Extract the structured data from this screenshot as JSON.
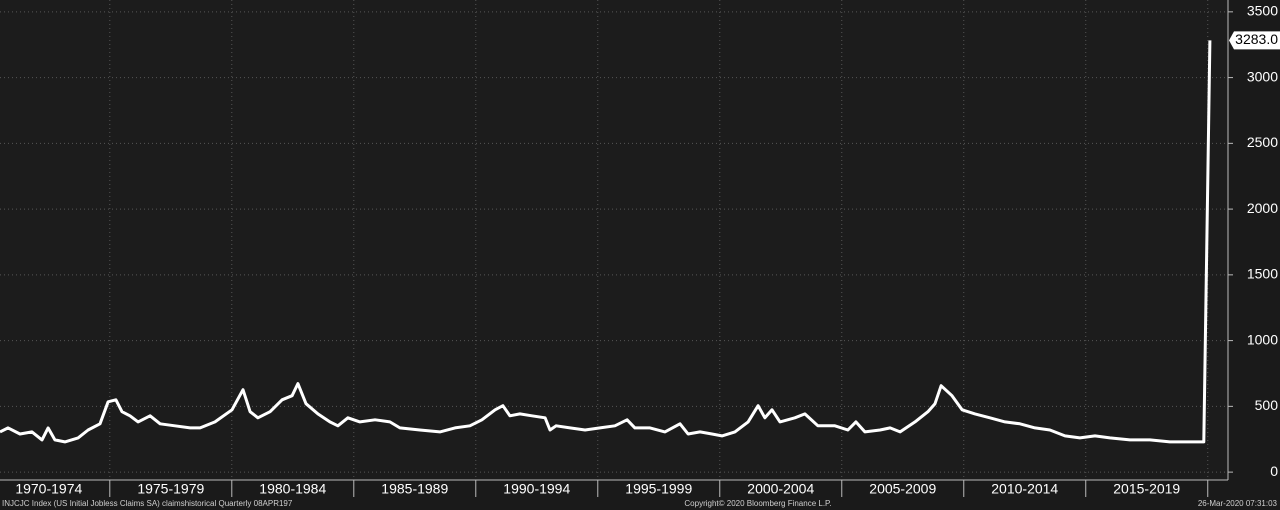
{
  "chart_data": {
    "type": "line",
    "x_bands": [
      "1970-1974",
      "1975-1979",
      "1980-1984",
      "1985-1989",
      "1990-1994",
      "1995-1999",
      "2000-2004",
      "2005-2009",
      "2010-2014",
      "2015-2019"
    ],
    "xlim": [
      1970.5,
      2020.83
    ],
    "xticks": [
      1975,
      1980,
      1985,
      1990,
      1995,
      2000,
      2005,
      2010,
      2015,
      2020
    ],
    "ylim": [
      -60,
      3590
    ],
    "yticks": [
      0,
      500,
      1000,
      1500,
      2000,
      2500,
      3000,
      3500
    ],
    "grid": true,
    "series": [
      {
        "color": "#ffffff",
        "x": [
          1970.5,
          1970.83,
          1971.32,
          1971.81,
          1972.22,
          1972.47,
          1972.75,
          1973.16,
          1973.7,
          1974.11,
          1974.6,
          1974.93,
          1975.25,
          1975.5,
          1975.83,
          1976.16,
          1976.65,
          1977.06,
          1977.67,
          1978.29,
          1978.7,
          1979.31,
          1980.01,
          1980.46,
          1980.75,
          1981.07,
          1981.57,
          1982.06,
          1982.47,
          1982.71,
          1983.04,
          1983.53,
          1984.02,
          1984.35,
          1984.76,
          1985.25,
          1985.87,
          1986.48,
          1986.89,
          1987.71,
          1988.53,
          1989.15,
          1989.76,
          1990.25,
          1990.79,
          1991.11,
          1991.4,
          1991.81,
          1992.3,
          1992.84,
          1993.04,
          1993.29,
          1993.86,
          1994.48,
          1995.09,
          1995.7,
          1996.2,
          1996.52,
          1997.14,
          1997.75,
          1998.37,
          1998.7,
          1999.19,
          1999.68,
          2000.09,
          2000.62,
          2001.16,
          2001.57,
          2001.85,
          2002.14,
          2002.47,
          2003.08,
          2003.49,
          2004.02,
          2004.72,
          2005.25,
          2005.58,
          2005.95,
          2006.57,
          2006.98,
          2007.39,
          2008.0,
          2008.53,
          2008.82,
          2009.07,
          2009.52,
          2009.93,
          2010.46,
          2011.07,
          2011.69,
          2012.3,
          2012.92,
          2013.53,
          2014.15,
          2014.76,
          2015.38,
          2015.99,
          2016.81,
          2017.63,
          2018.45,
          2019.27,
          2019.84,
          2020.09
        ],
        "values": [
          306,
          336,
          290,
          306,
          245,
          336,
          245,
          230,
          260,
          320,
          367,
          535,
          550,
          459,
          428,
          382,
          428,
          367,
          352,
          336,
          336,
          382,
          474,
          627,
          459,
          413,
          459,
          550,
          581,
          673,
          520,
          443,
          382,
          352,
          413,
          382,
          398,
          382,
          336,
          320,
          306,
          336,
          352,
          398,
          474,
          505,
          428,
          443,
          428,
          413,
          320,
          352,
          336,
          320,
          336,
          352,
          398,
          336,
          336,
          306,
          367,
          290,
          306,
          290,
          275,
          306,
          382,
          505,
          413,
          474,
          382,
          413,
          443,
          352,
          352,
          320,
          382,
          306,
          320,
          336,
          306,
          382,
          459,
          520,
          657,
          581,
          474,
          443,
          413,
          382,
          367,
          336,
          320,
          275,
          260,
          275,
          260,
          245,
          245,
          230,
          230,
          230,
          3283
        ],
        "last_value_label": "3283.0"
      }
    ],
    "footer_left": "INJCJC Index (US Initial Jobless Claims SA) claimshistorical  Quarterly 08APR197",
    "footer_center": "Copyright© 2020 Bloomberg Finance L.P.",
    "footer_right": "26-Mar-2020 07:31:03"
  }
}
